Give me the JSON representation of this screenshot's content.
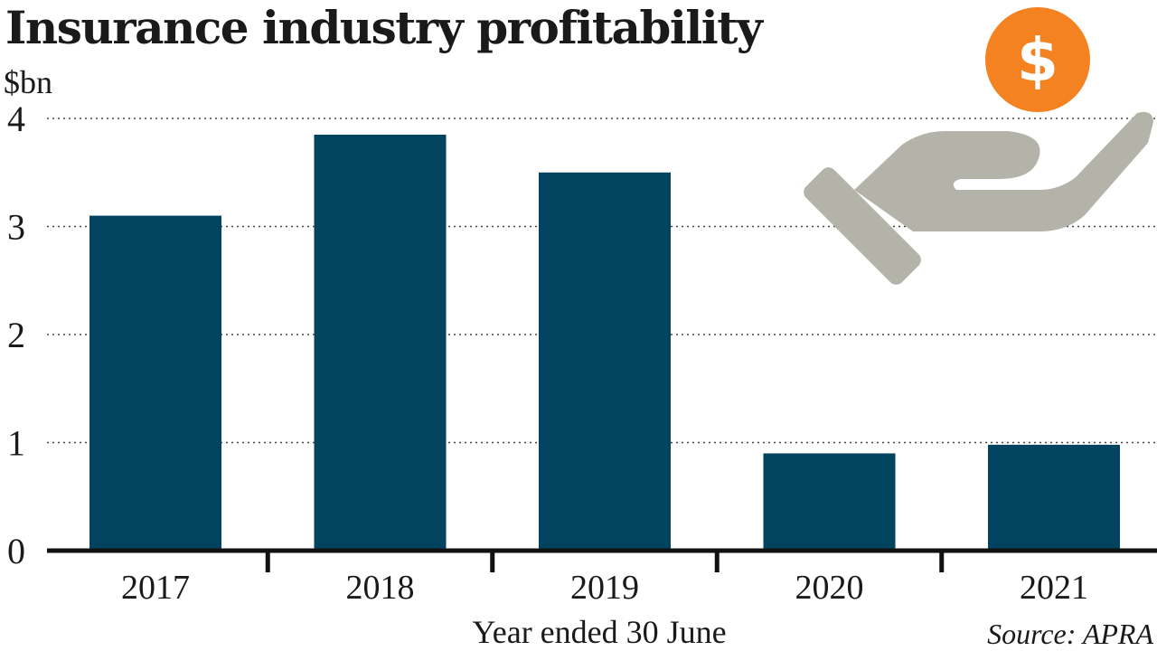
{
  "chart_data": {
    "type": "bar",
    "title": "Insurance industry profitability",
    "unit_label": "$bn",
    "categories": [
      "2017",
      "2018",
      "2019",
      "2020",
      "2021"
    ],
    "values": [
      3.1,
      3.85,
      3.5,
      0.9,
      0.98
    ],
    "yticks": [
      "0",
      "1",
      "2",
      "3",
      "4"
    ],
    "ylim": [
      0,
      4
    ],
    "xlabel": "Year ended 30 June",
    "source": "Source: APRA",
    "bar_color": "#02435f",
    "grid": true
  },
  "illustration": {
    "coin_icon": "dollar-coin-icon",
    "coin_symbol": "$",
    "coin_color": "#f58220",
    "hand_icon": "open-hand-icon",
    "hand_color": "#b3b3aa"
  }
}
